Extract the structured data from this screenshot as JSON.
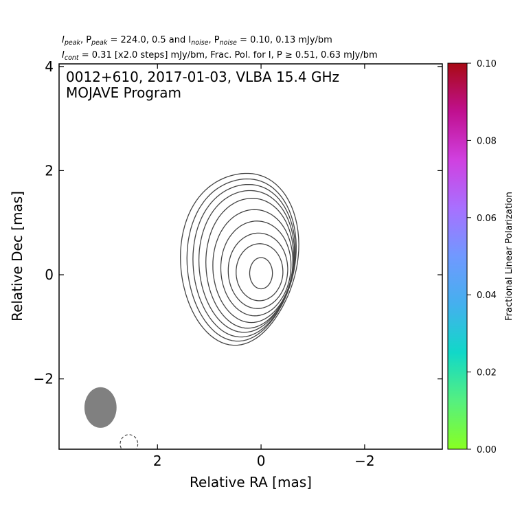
{
  "chart_data": {
    "type": "contour",
    "header": {
      "line1": {
        "a": "I",
        "a_sub": "peak",
        "b": ", P",
        "b_sub": "peak",
        "c": " = 224.0, 0.5 and I",
        "c_sub": "noise",
        "d": ", P",
        "d_sub": "noise",
        "e": " = 0.10, 0.13 mJy/bm"
      },
      "line2": {
        "a": "I",
        "a_sub": "cont",
        "b": " = 0.31 [x2.0 steps] mJy/bm, Frac. Pol. for I, P ≥ 0.51, 0.63 mJy/bm"
      }
    },
    "title_line1": "0012+610, 2017-01-03, VLBA 15.4 GHz",
    "title_line2": "MOJAVE Program",
    "xlabel": "Relative RA [mas]",
    "ylabel": "Relative Dec [mas]",
    "xlim": [
      3.9,
      -3.5
    ],
    "ylim": [
      -3.35,
      4.05
    ],
    "xticks": [
      {
        "value": 2,
        "label": "2"
      },
      {
        "value": 0,
        "label": "0"
      },
      {
        "value": -2,
        "label": "−2"
      }
    ],
    "yticks": [
      {
        "value": 4,
        "label": "4"
      },
      {
        "value": 2,
        "label": "2"
      },
      {
        "value": 0,
        "label": "0"
      },
      {
        "value": -2,
        "label": "−2"
      }
    ],
    "contour_base_mJy": 0.31,
    "contour_step_factor": 2.0,
    "contours": [
      {
        "cx": 0.0,
        "cy": 0.03,
        "a": 0.22,
        "b": 0.3
      },
      {
        "cx": 0.03,
        "cy": 0.05,
        "a": 0.45,
        "b": 0.55
      },
      {
        "cx": 0.06,
        "cy": 0.08,
        "a": 0.57,
        "b": 0.73
      },
      {
        "cx": 0.1,
        "cy": 0.13,
        "a": 0.67,
        "b": 0.92
      },
      {
        "cx": 0.16,
        "cy": 0.18,
        "a": 0.76,
        "b": 1.1
      },
      {
        "cx": 0.22,
        "cy": 0.24,
        "a": 0.83,
        "b": 1.27
      },
      {
        "cx": 0.28,
        "cy": 0.28,
        "a": 0.9,
        "b": 1.39
      },
      {
        "cx": 0.33,
        "cy": 0.3,
        "a": 0.96,
        "b": 1.5
      },
      {
        "cx": 0.38,
        "cy": 0.32,
        "a": 1.02,
        "b": 1.6
      },
      {
        "cx": 0.42,
        "cy": 0.34,
        "a": 1.1,
        "b": 1.7
      }
    ],
    "negative_contour": {
      "cx": 2.55,
      "cy": -3.25,
      "a": 0.17,
      "b": 0.18
    },
    "beam": {
      "cx": 3.1,
      "cy": -2.55,
      "a": 0.31,
      "b": 0.39,
      "color": "#808080"
    },
    "colorbar": {
      "label": "Fractional Linear Polarization",
      "range": [
        0.0,
        0.1
      ],
      "ticks": [
        "0.00",
        "0.02",
        "0.04",
        "0.06",
        "0.08",
        "0.10"
      ],
      "colors": [
        "#88ff22",
        "#55f080",
        "#11d8c8",
        "#44b0ee",
        "#7099ff",
        "#a870ff",
        "#d040e0",
        "#c0108f",
        "#a80a14"
      ]
    },
    "contour_color": "#444444"
  }
}
